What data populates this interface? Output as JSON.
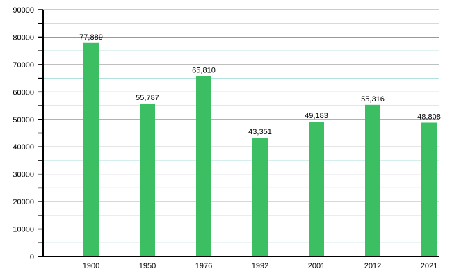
{
  "chart_data": {
    "type": "bar",
    "title": "",
    "xlabel": "",
    "ylabel": "",
    "categories": [
      "1900",
      "1950",
      "1976",
      "1992",
      "2001",
      "2012",
      "2021"
    ],
    "values": [
      77889,
      55787,
      65810,
      43351,
      49183,
      55316,
      48808
    ],
    "value_labels": [
      "77,889",
      "55,787",
      "65,810",
      "43,351",
      "49,183",
      "55,316",
      "48,808"
    ],
    "ylim": [
      0,
      90000
    ],
    "y_major_step": 10000,
    "y_minor_step": 5000,
    "y_tick_labels": [
      "0",
      "10000",
      "20000",
      "30000",
      "40000",
      "50000",
      "60000",
      "70000",
      "80000",
      "90000"
    ],
    "grid": true,
    "legend_position": "none",
    "colors": {
      "bar": "#3cbf63",
      "major_grid": "#999999",
      "minor_grid": "#aadcd8",
      "axis": "#000000",
      "text": "#000000",
      "background": "#ffffff"
    }
  }
}
